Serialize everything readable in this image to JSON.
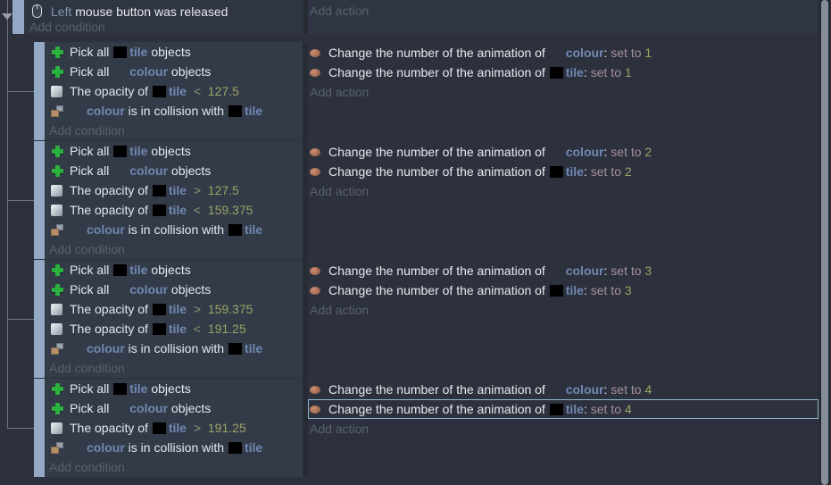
{
  "labels": {
    "add_condition": "Add condition",
    "add_action": "Add action"
  },
  "colors": {
    "page_bg": "#2c313d",
    "event_bg": "#2f3543",
    "condition_bg": "#333a48",
    "event_bar": "#93a9c6",
    "object_text": "#7088b2",
    "value_text": "#9aa565",
    "param_text": "#7e99a4",
    "set_to_text": "#a6909a",
    "muted_text": "#59616f",
    "selection_border": "#8fb8cf",
    "plus_icon_green": "#2ab23e",
    "action_icon": "#b97d63"
  },
  "root_event": {
    "condition": {
      "icon": "mouse-icon",
      "segments": [
        {
          "t": "Left",
          "c": "param"
        },
        {
          "t": " mouse button was released",
          "c": "plain"
        }
      ]
    }
  },
  "sub_events": [
    {
      "conditions": [
        {
          "icon": "pick-objects-icon",
          "segments": [
            {
              "t": "Pick all ",
              "c": "plain"
            },
            {
              "c": "thumb"
            },
            {
              "t": "tile",
              "c": "object"
            },
            {
              "t": " objects",
              "c": "plain"
            }
          ]
        },
        {
          "icon": "pick-objects-icon",
          "segments": [
            {
              "t": "Pick all ",
              "c": "plain"
            },
            {
              "c": "blank"
            },
            {
              "t": "colour",
              "c": "object"
            },
            {
              "t": " objects",
              "c": "plain"
            }
          ]
        },
        {
          "icon": "opacity-icon",
          "segments": [
            {
              "t": "The opacity of ",
              "c": "plain"
            },
            {
              "c": "thumb"
            },
            {
              "t": "tile",
              "c": "object"
            },
            {
              "t": "  <  ",
              "c": "op"
            },
            {
              "t": "127.5",
              "c": "value"
            }
          ]
        },
        {
          "icon": "collision-icon",
          "segments": [
            {
              "c": "blank"
            },
            {
              "t": "colour",
              "c": "object"
            },
            {
              "t": " is in collision with ",
              "c": "plain"
            },
            {
              "c": "thumb"
            },
            {
              "t": "tile",
              "c": "object"
            }
          ]
        }
      ],
      "actions": [
        {
          "icon": "animation-icon",
          "selected": false,
          "segments": [
            {
              "t": "Change the number of the animation of ",
              "c": "plain"
            },
            {
              "c": "blank"
            },
            {
              "t": "colour",
              "c": "object"
            },
            {
              "t": ": ",
              "c": "plain"
            },
            {
              "t": "set to ",
              "c": "setto"
            },
            {
              "t": "1",
              "c": "value"
            }
          ]
        },
        {
          "icon": "animation-icon",
          "selected": false,
          "segments": [
            {
              "t": "Change the number of the animation of ",
              "c": "plain"
            },
            {
              "c": "thumb"
            },
            {
              "t": "tile",
              "c": "object"
            },
            {
              "t": ": ",
              "c": "plain"
            },
            {
              "t": "set to ",
              "c": "setto"
            },
            {
              "t": "1",
              "c": "value"
            }
          ]
        }
      ]
    },
    {
      "conditions": [
        {
          "icon": "pick-objects-icon",
          "segments": [
            {
              "t": "Pick all ",
              "c": "plain"
            },
            {
              "c": "thumb"
            },
            {
              "t": "tile",
              "c": "object"
            },
            {
              "t": " objects",
              "c": "plain"
            }
          ]
        },
        {
          "icon": "pick-objects-icon",
          "segments": [
            {
              "t": "Pick all ",
              "c": "plain"
            },
            {
              "c": "blank"
            },
            {
              "t": "colour",
              "c": "object"
            },
            {
              "t": " objects",
              "c": "plain"
            }
          ]
        },
        {
          "icon": "opacity-icon",
          "segments": [
            {
              "t": "The opacity of ",
              "c": "plain"
            },
            {
              "c": "thumb"
            },
            {
              "t": "tile",
              "c": "object"
            },
            {
              "t": "  >  ",
              "c": "op"
            },
            {
              "t": "127.5",
              "c": "value"
            }
          ]
        },
        {
          "icon": "opacity-icon",
          "segments": [
            {
              "t": "The opacity of ",
              "c": "plain"
            },
            {
              "c": "thumb"
            },
            {
              "t": "tile",
              "c": "object"
            },
            {
              "t": "  <  ",
              "c": "op"
            },
            {
              "t": "159.375",
              "c": "value"
            }
          ]
        },
        {
          "icon": "collision-icon",
          "segments": [
            {
              "c": "blank"
            },
            {
              "t": "colour",
              "c": "object"
            },
            {
              "t": " is in collision with ",
              "c": "plain"
            },
            {
              "c": "thumb"
            },
            {
              "t": "tile",
              "c": "object"
            }
          ]
        }
      ],
      "actions": [
        {
          "icon": "animation-icon",
          "selected": false,
          "segments": [
            {
              "t": "Change the number of the animation of ",
              "c": "plain"
            },
            {
              "c": "blank"
            },
            {
              "t": "colour",
              "c": "object"
            },
            {
              "t": ": ",
              "c": "plain"
            },
            {
              "t": "set to ",
              "c": "setto"
            },
            {
              "t": "2",
              "c": "value"
            }
          ]
        },
        {
          "icon": "animation-icon",
          "selected": false,
          "segments": [
            {
              "t": "Change the number of the animation of ",
              "c": "plain"
            },
            {
              "c": "thumb"
            },
            {
              "t": "tile",
              "c": "object"
            },
            {
              "t": ": ",
              "c": "plain"
            },
            {
              "t": "set to ",
              "c": "setto"
            },
            {
              "t": "2",
              "c": "value"
            }
          ]
        }
      ]
    },
    {
      "conditions": [
        {
          "icon": "pick-objects-icon",
          "segments": [
            {
              "t": "Pick all ",
              "c": "plain"
            },
            {
              "c": "thumb"
            },
            {
              "t": "tile",
              "c": "object"
            },
            {
              "t": " objects",
              "c": "plain"
            }
          ]
        },
        {
          "icon": "pick-objects-icon",
          "segments": [
            {
              "t": "Pick all ",
              "c": "plain"
            },
            {
              "c": "blank"
            },
            {
              "t": "colour",
              "c": "object"
            },
            {
              "t": " objects",
              "c": "plain"
            }
          ]
        },
        {
          "icon": "opacity-icon",
          "segments": [
            {
              "t": "The opacity of ",
              "c": "plain"
            },
            {
              "c": "thumb"
            },
            {
              "t": "tile",
              "c": "object"
            },
            {
              "t": "  >  ",
              "c": "op"
            },
            {
              "t": "159.375",
              "c": "value"
            }
          ]
        },
        {
          "icon": "opacity-icon",
          "segments": [
            {
              "t": "The opacity of ",
              "c": "plain"
            },
            {
              "c": "thumb"
            },
            {
              "t": "tile",
              "c": "object"
            },
            {
              "t": "  <  ",
              "c": "op"
            },
            {
              "t": "191.25",
              "c": "value"
            }
          ]
        },
        {
          "icon": "collision-icon",
          "segments": [
            {
              "c": "blank"
            },
            {
              "t": "colour",
              "c": "object"
            },
            {
              "t": " is in collision with ",
              "c": "plain"
            },
            {
              "c": "thumb"
            },
            {
              "t": "tile",
              "c": "object"
            }
          ]
        }
      ],
      "actions": [
        {
          "icon": "animation-icon",
          "selected": false,
          "segments": [
            {
              "t": "Change the number of the animation of ",
              "c": "plain"
            },
            {
              "c": "blank"
            },
            {
              "t": "colour",
              "c": "object"
            },
            {
              "t": ": ",
              "c": "plain"
            },
            {
              "t": "set to ",
              "c": "setto"
            },
            {
              "t": "3",
              "c": "value"
            }
          ]
        },
        {
          "icon": "animation-icon",
          "selected": false,
          "segments": [
            {
              "t": "Change the number of the animation of ",
              "c": "plain"
            },
            {
              "c": "thumb"
            },
            {
              "t": "tile",
              "c": "object"
            },
            {
              "t": ": ",
              "c": "plain"
            },
            {
              "t": "set to ",
              "c": "setto"
            },
            {
              "t": "3",
              "c": "value"
            }
          ]
        }
      ]
    },
    {
      "conditions": [
        {
          "icon": "pick-objects-icon",
          "segments": [
            {
              "t": "Pick all ",
              "c": "plain"
            },
            {
              "c": "thumb"
            },
            {
              "t": "tile",
              "c": "object"
            },
            {
              "t": " objects",
              "c": "plain"
            }
          ]
        },
        {
          "icon": "pick-objects-icon",
          "segments": [
            {
              "t": "Pick all ",
              "c": "plain"
            },
            {
              "c": "blank"
            },
            {
              "t": "colour",
              "c": "object"
            },
            {
              "t": " objects",
              "c": "plain"
            }
          ]
        },
        {
          "icon": "opacity-icon",
          "segments": [
            {
              "t": "The opacity of ",
              "c": "plain"
            },
            {
              "c": "thumb"
            },
            {
              "t": "tile",
              "c": "object"
            },
            {
              "t": "  >  ",
              "c": "op"
            },
            {
              "t": "191.25",
              "c": "value"
            }
          ]
        },
        {
          "icon": "collision-icon",
          "segments": [
            {
              "c": "blank"
            },
            {
              "t": "colour",
              "c": "object"
            },
            {
              "t": " is in collision with ",
              "c": "plain"
            },
            {
              "c": "thumb"
            },
            {
              "t": "tile",
              "c": "object"
            }
          ]
        }
      ],
      "actions": [
        {
          "icon": "animation-icon",
          "selected": false,
          "segments": [
            {
              "t": "Change the number of the animation of ",
              "c": "plain"
            },
            {
              "c": "blank"
            },
            {
              "t": "colour",
              "c": "object"
            },
            {
              "t": ": ",
              "c": "plain"
            },
            {
              "t": "set to ",
              "c": "setto"
            },
            {
              "t": "4",
              "c": "value"
            }
          ]
        },
        {
          "icon": "animation-icon",
          "selected": true,
          "segments": [
            {
              "t": "Change the number of the animation of ",
              "c": "plain"
            },
            {
              "c": "thumb"
            },
            {
              "t": "tile",
              "c": "object"
            },
            {
              "t": ": ",
              "c": "plain"
            },
            {
              "t": "set to ",
              "c": "setto"
            },
            {
              "t": "4",
              "c": "value"
            }
          ]
        }
      ]
    }
  ]
}
